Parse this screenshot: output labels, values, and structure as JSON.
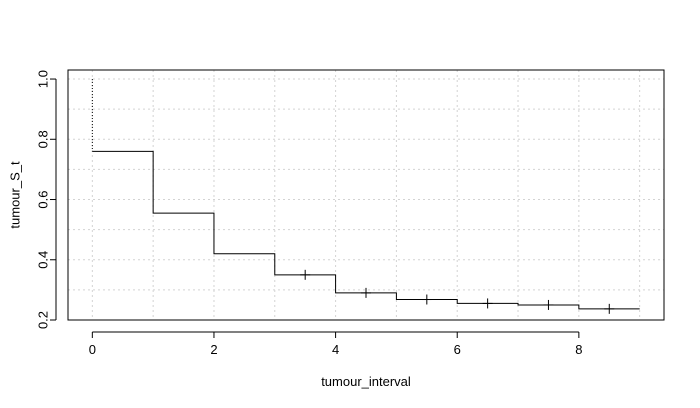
{
  "chart_data": {
    "type": "line",
    "subtype": "step",
    "title": "",
    "xlabel": "tumour_interval",
    "ylabel": "tumour_S_t",
    "xlim": [
      -0.4,
      9.4
    ],
    "ylim": [
      0.2,
      1.03
    ],
    "x_ticks": [
      0,
      2,
      4,
      6,
      8
    ],
    "x_tick_labels": [
      "0",
      "2",
      "4",
      "6",
      "8"
    ],
    "y_ticks": [
      0.2,
      0.4,
      0.6,
      0.8,
      1.0
    ],
    "y_tick_labels": [
      "0.2",
      "0.4",
      "0.6",
      "0.8",
      "1.0"
    ],
    "grid": true,
    "series": [
      {
        "name": "tumour_S_t",
        "steps": [
          {
            "x": 0,
            "y": 1.0
          },
          {
            "x": 0,
            "y": 0.76
          },
          {
            "x": 1,
            "y": 0.555
          },
          {
            "x": 2,
            "y": 0.42
          },
          {
            "x": 3,
            "y": 0.35
          },
          {
            "x": 4,
            "y": 0.29
          },
          {
            "x": 5,
            "y": 0.268
          },
          {
            "x": 6,
            "y": 0.255
          },
          {
            "x": 7,
            "y": 0.25
          },
          {
            "x": 8,
            "y": 0.237
          },
          {
            "x": 9,
            "y": 0.237
          }
        ],
        "censor_marks": [
          {
            "x": 3.5,
            "y": 0.35
          },
          {
            "x": 4.5,
            "y": 0.29
          },
          {
            "x": 5.5,
            "y": 0.268
          },
          {
            "x": 6.5,
            "y": 0.255
          },
          {
            "x": 7.5,
            "y": 0.25
          },
          {
            "x": 8.5,
            "y": 0.237
          }
        ]
      }
    ]
  }
}
